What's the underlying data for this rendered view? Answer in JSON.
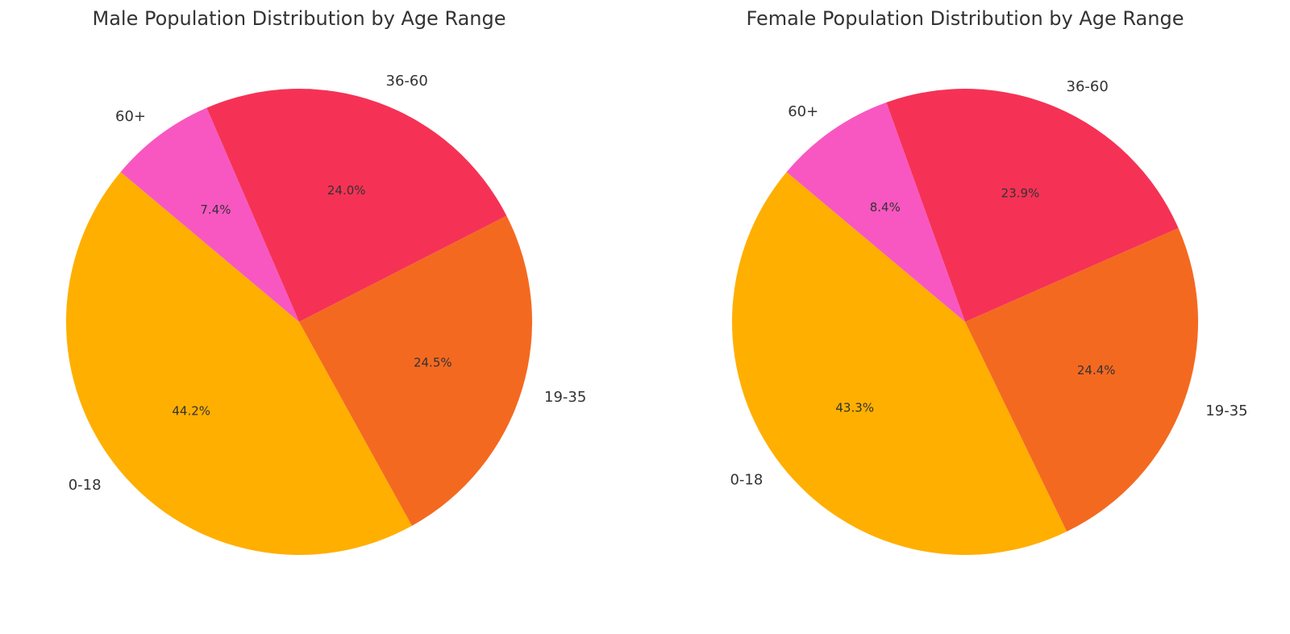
{
  "chart_data": [
    {
      "type": "pie",
      "title": "Male Population Distribution by Age Range",
      "start_angle_deg": 140,
      "direction": "counterclockwise",
      "slices": [
        {
          "label": "0-18",
          "value": 44.2,
          "pct_label": "44.2%",
          "color": "#FFAF00"
        },
        {
          "label": "19-35",
          "value": 24.5,
          "pct_label": "24.5%",
          "color": "#F46920"
        },
        {
          "label": "36-60",
          "value": 24.0,
          "pct_label": "24.0%",
          "color": "#F53255"
        },
        {
          "label": "60+",
          "value": 7.4,
          "pct_label": "7.4%",
          "color": "#F857C1"
        }
      ]
    },
    {
      "type": "pie",
      "title": "Female Population Distribution by Age Range",
      "start_angle_deg": 140,
      "direction": "counterclockwise",
      "slices": [
        {
          "label": "0-18",
          "value": 43.3,
          "pct_label": "43.3%",
          "color": "#FFAF00"
        },
        {
          "label": "19-35",
          "value": 24.4,
          "pct_label": "24.4%",
          "color": "#F46920"
        },
        {
          "label": "36-60",
          "value": 23.9,
          "pct_label": "23.9%",
          "color": "#F53255"
        },
        {
          "label": "60+",
          "value": 8.4,
          "pct_label": "8.4%",
          "color": "#F857C1"
        }
      ]
    }
  ]
}
